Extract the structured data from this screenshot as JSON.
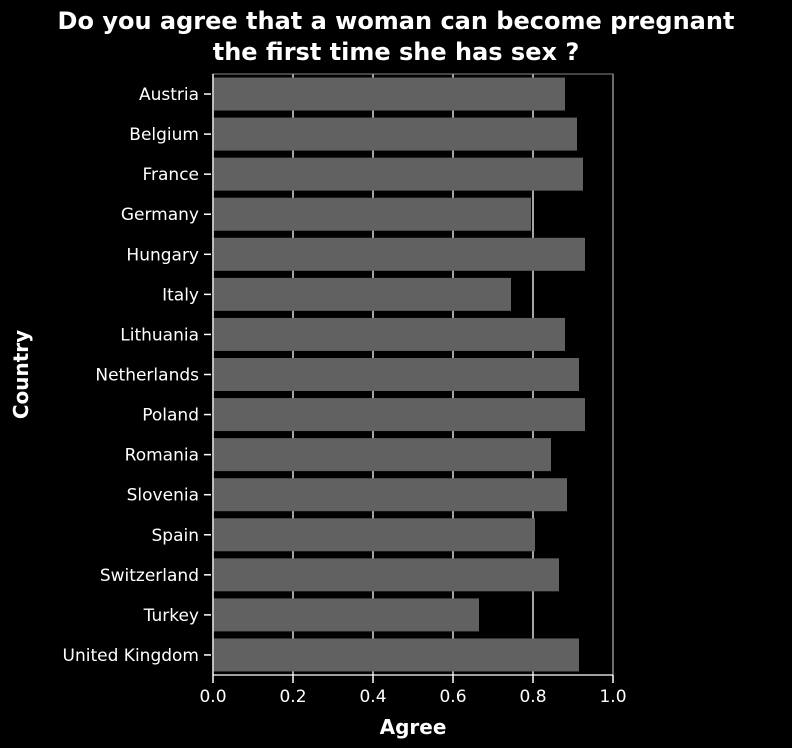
{
  "chart_data": {
    "type": "bar",
    "orientation": "horizontal",
    "title_lines": [
      "Do you agree that a woman can become pregnant",
      "the first time she has sex ?"
    ],
    "xlabel": "Agree",
    "ylabel": "Country",
    "xlim": [
      0,
      1.0
    ],
    "xticks": [
      "0.0",
      "0.2",
      "0.4",
      "0.6",
      "0.8",
      "1.0"
    ],
    "grid": "vertical",
    "categories": [
      "Austria",
      "Belgium",
      "France",
      "Germany",
      "Hungary",
      "Italy",
      "Lithuania",
      "Netherlands",
      "Poland",
      "Romania",
      "Slovenia",
      "Spain",
      "Switzerland",
      "Turkey",
      "United Kingdom"
    ],
    "values": [
      0.88,
      0.91,
      0.925,
      0.795,
      0.93,
      0.745,
      0.88,
      0.915,
      0.93,
      0.845,
      0.885,
      0.805,
      0.865,
      0.665,
      0.915
    ],
    "colors": {
      "background": "#000000",
      "bar": "#616161",
      "grid": "#ffffff",
      "text": "#ffffff",
      "plot_frame": "#888888"
    }
  }
}
